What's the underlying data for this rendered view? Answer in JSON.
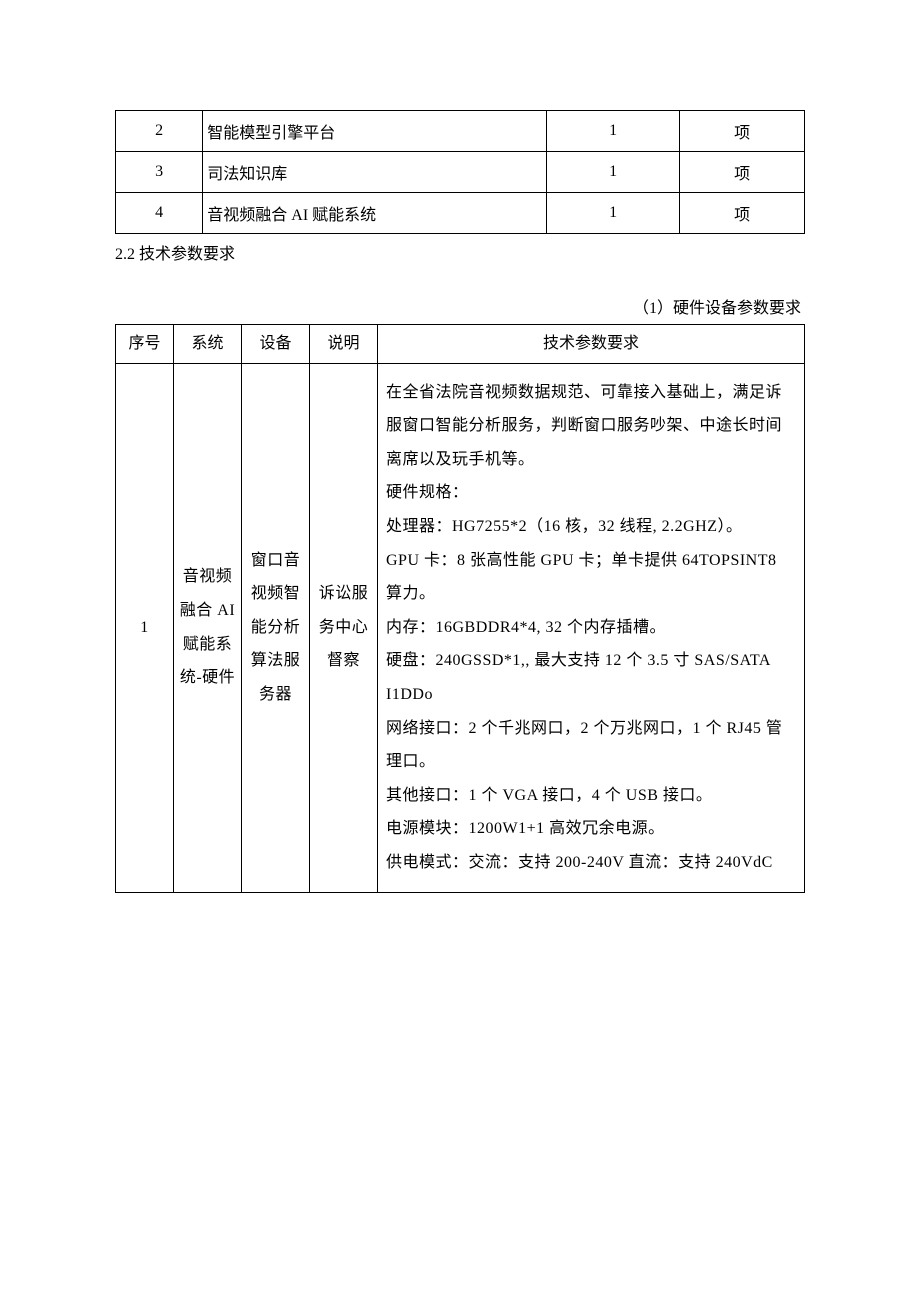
{
  "table1": {
    "rows": [
      {
        "no": "2",
        "name": "智能模型引擎平台",
        "qty": "1",
        "unit": "项"
      },
      {
        "no": "3",
        "name": "司法知识库",
        "qty": "1",
        "unit": "项"
      },
      {
        "no": "4",
        "name": "音视频融合 AI 赋能系统",
        "qty": "1",
        "unit": "项"
      }
    ]
  },
  "section_heading": "2.2 技术参数要求",
  "right_note": "（1）硬件设备参数要求",
  "table2": {
    "headers": {
      "h1": "序号",
      "h2": "系统",
      "h3": "设备",
      "h4": "说明",
      "h5": "技术参数要求"
    },
    "row": {
      "no": "1",
      "system": "音视频融合 AI 赋能系统-硬件",
      "device": "窗口音视频智能分析算法服务器",
      "desc": "诉讼服务中心督察",
      "spec": "在全省法院音视频数据规范、可靠接入基础上，满足诉服窗口智能分析服务，判断窗口服务吵架、中途长时间离席以及玩手机等。\n硬件规格：\n处理器：HG7255*2（16 核，32 线程, 2.2GHZ）。\nGPU 卡：8 张高性能 GPU 卡；单卡提供 64TOPSINT8 算力。\n内存：16GBDDR4*4, 32 个内存插槽。\n硬盘：240GSSD*1,, 最大支持 12 个 3.5 寸 SAS/SATA I1DDo\n网络接口：2 个千兆网口，2 个万兆网口，1 个 RJ45 管理口。\n其他接口：1 个 VGA 接口，4 个 USB 接口。\n电源模块：1200W1+1 高效冗余电源。\n供电模式：交流：支持 200-240V 直流：支持 240VdC"
    }
  }
}
